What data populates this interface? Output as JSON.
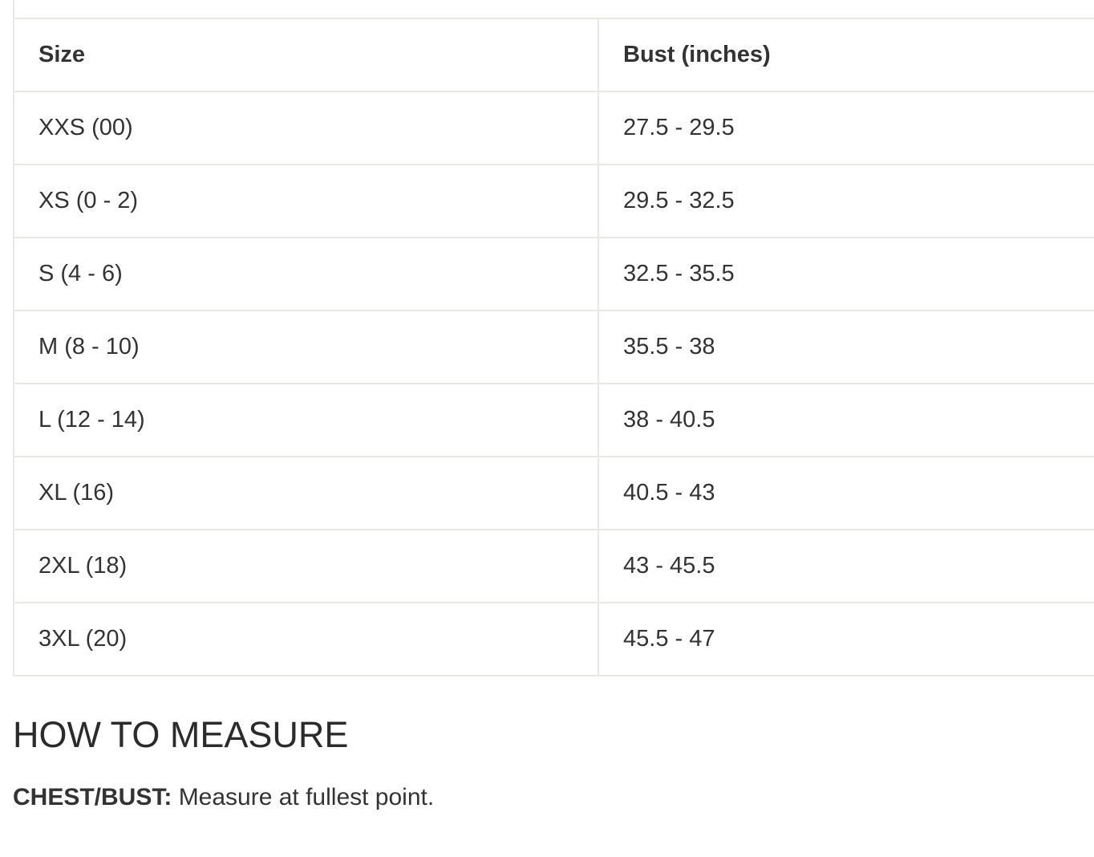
{
  "size_chart": {
    "headers": [
      "Size",
      "Bust (inches)"
    ],
    "rows": [
      [
        "XXS (00)",
        "27.5 - 29.5"
      ],
      [
        "XS (0 - 2)",
        "29.5 - 32.5"
      ],
      [
        "S (4 - 6)",
        "32.5 - 35.5"
      ],
      [
        "M (8 - 10)",
        "35.5 - 38"
      ],
      [
        "L (12 - 14)",
        "38 - 40.5"
      ],
      [
        "XL (16)",
        "40.5 - 43"
      ],
      [
        "2XL (18)",
        "43 - 45.5"
      ],
      [
        "3XL (20)",
        "45.5 - 47"
      ]
    ]
  },
  "how_to_measure": {
    "title": "HOW TO MEASURE",
    "label": "CHEST/BUST:",
    "text": "Measure at fullest point."
  }
}
